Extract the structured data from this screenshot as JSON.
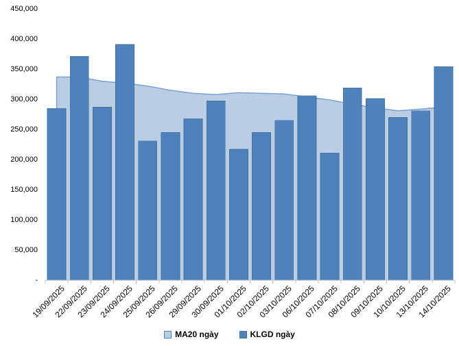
{
  "chart_data": {
    "type": "combo-bar-area",
    "title": "",
    "xlabel": "",
    "ylabel": "",
    "categories": [
      "19/09/2025",
      "22/09/2025",
      "23/09/2025",
      "24/09/2025",
      "25/09/2025",
      "26/09/2025",
      "29/09/2025",
      "30/09/2025",
      "01/10/2025",
      "02/10/2025",
      "03/10/2025",
      "06/10/2025",
      "07/10/2025",
      "08/10/2025",
      "09/10/2025",
      "10/10/2025",
      "13/10/2025",
      "14/10/2025"
    ],
    "series": [
      {
        "name": "MA20 ngày",
        "type": "area",
        "values": [
          337000,
          337000,
          330000,
          327000,
          322000,
          315000,
          310000,
          308000,
          311000,
          310000,
          309000,
          304000,
          299000,
          292000,
          286000,
          281000,
          284000,
          287000
        ]
      },
      {
        "name": "KLGD ngày",
        "type": "bar",
        "values": [
          285000,
          371000,
          287000,
          391000,
          231000,
          245000,
          268000,
          297000,
          217000,
          245000,
          265000,
          306000,
          211000,
          319000,
          301000,
          270000,
          281000,
          354000
        ]
      }
    ],
    "y_axis": {
      "min": 0,
      "max": 450000,
      "step": 50000,
      "tick_labels_top_to_bottom": [
        "450,000",
        "400,000",
        "350,000",
        "300,000",
        "250,000",
        "200,000",
        "150,000",
        "100,000",
        "50,000",
        "-"
      ]
    },
    "legend_position": "bottom-center",
    "grid": "off",
    "x_labels_rotation_deg": -45
  },
  "colors": {
    "bar_fill": "#4f81bd",
    "bar_border": "#41719c",
    "area_fill": "#b9cde5",
    "area_line": "#7da0cf",
    "axis_line": "#c0c0c0",
    "text": "#000000",
    "background": "#ffffff"
  },
  "legend": {
    "ma20_label": "MA20 ngày",
    "klgd_label": "KLGD ngày"
  }
}
